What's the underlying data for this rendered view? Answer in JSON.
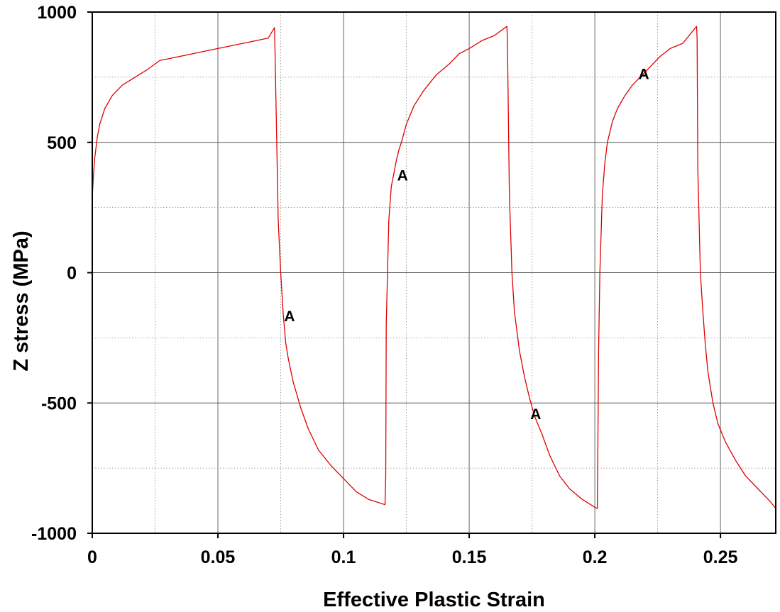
{
  "chart_data": {
    "type": "line",
    "title": "",
    "xlabel": "Effective Plastic Strain",
    "ylabel": "Z stress (MPa)",
    "xlim": [
      0,
      0.272
    ],
    "ylim": [
      -1000,
      1000
    ],
    "x_ticks": [
      0,
      0.05,
      0.1,
      0.15,
      0.2,
      0.25
    ],
    "x_tick_labels": [
      "0",
      "0.05",
      "0.1",
      "0.15",
      "0.2",
      "0.25"
    ],
    "y_ticks": [
      1000,
      500,
      0,
      -500,
      -1000
    ],
    "y_tick_labels": [
      "1000",
      "500",
      "0",
      "-500",
      "-1000"
    ],
    "grid": true,
    "line_color": "#e00000",
    "series": [
      {
        "x": [
          0,
          0,
          0.0005,
          0.001,
          0.002,
          0.003,
          0.005,
          0.008,
          0.012,
          0.017,
          0.022,
          0.027,
          0.03,
          0.04,
          0.05,
          0.06,
          0.07,
          0.0725,
          0.0726,
          0.074,
          0.075,
          0.076,
          0.077,
          0.078,
          0.08,
          0.083,
          0.086,
          0.09,
          0.095,
          0.1,
          0.105,
          0.11,
          0.1165,
          0.1168,
          0.117,
          0.1175,
          0.118,
          0.119,
          0.12,
          0.121,
          0.122,
          0.123,
          0.125,
          0.128,
          0.132,
          0.137,
          0.142,
          0.146,
          0.15,
          0.155,
          0.16,
          0.165,
          0.1652,
          0.166,
          0.167,
          0.168,
          0.17,
          0.172,
          0.174,
          0.176,
          0.179,
          0.182,
          0.186,
          0.19,
          0.195,
          0.2,
          0.201,
          0.2012,
          0.2015,
          0.202,
          0.203,
          0.204,
          0.205,
          0.207,
          0.209,
          0.212,
          0.215,
          0.218,
          0.222,
          0.226,
          0.23,
          0.235,
          0.2405,
          0.2407,
          0.241,
          0.2415,
          0.242,
          0.243,
          0.244,
          0.245,
          0.247,
          0.249,
          0.252,
          0.256,
          0.26,
          0.265,
          0.27,
          0.272
        ],
        "y": [
          0,
          290,
          380,
          440,
          520,
          570,
          630,
          680,
          720,
          750,
          780,
          815,
          820,
          840,
          860,
          880,
          900,
          940,
          920,
          200,
          0,
          -160,
          -270,
          -330,
          -420,
          -520,
          -600,
          -680,
          -740,
          -790,
          -840,
          -870,
          -890,
          -780,
          -200,
          0,
          200,
          330,
          380,
          430,
          470,
          500,
          570,
          640,
          700,
          760,
          800,
          840,
          860,
          890,
          910,
          945,
          900,
          300,
          0,
          -150,
          -300,
          -400,
          -480,
          -550,
          -620,
          -700,
          -780,
          -830,
          -870,
          -900,
          -905,
          -700,
          -300,
          0,
          300,
          420,
          500,
          580,
          630,
          680,
          720,
          750,
          790,
          830,
          860,
          880,
          945,
          900,
          400,
          200,
          0,
          -150,
          -280,
          -380,
          -500,
          -580,
          -650,
          -720,
          -780,
          -830,
          -880,
          -905
        ]
      }
    ],
    "annotations": [
      {
        "text": "A",
        "x": 0.0785,
        "y": -165
      },
      {
        "text": "A",
        "x": 0.1235,
        "y": 375
      },
      {
        "text": "A",
        "x": 0.1765,
        "y": -540
      },
      {
        "text": "A",
        "x": 0.2195,
        "y": 765
      }
    ]
  }
}
